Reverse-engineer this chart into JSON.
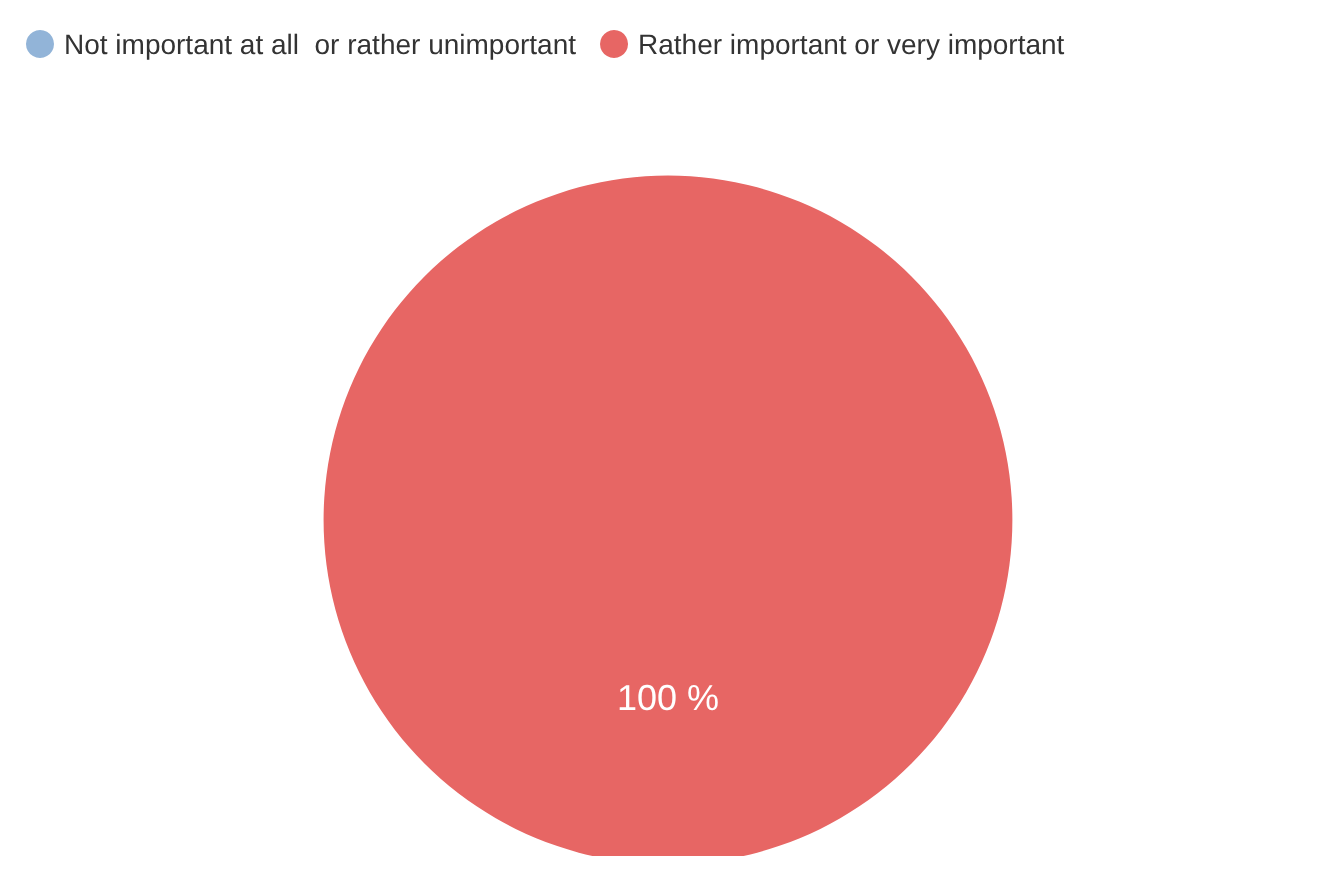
{
  "chart_data": {
    "type": "pie",
    "categories": [
      "Not important at all  or rather unimportant",
      "Rather important or very important"
    ],
    "values": [
      0,
      100
    ],
    "colors": [
      "#92b4d8",
      "#e76664"
    ],
    "value_labels": [
      null,
      "100 %"
    ],
    "legend": "top left"
  }
}
